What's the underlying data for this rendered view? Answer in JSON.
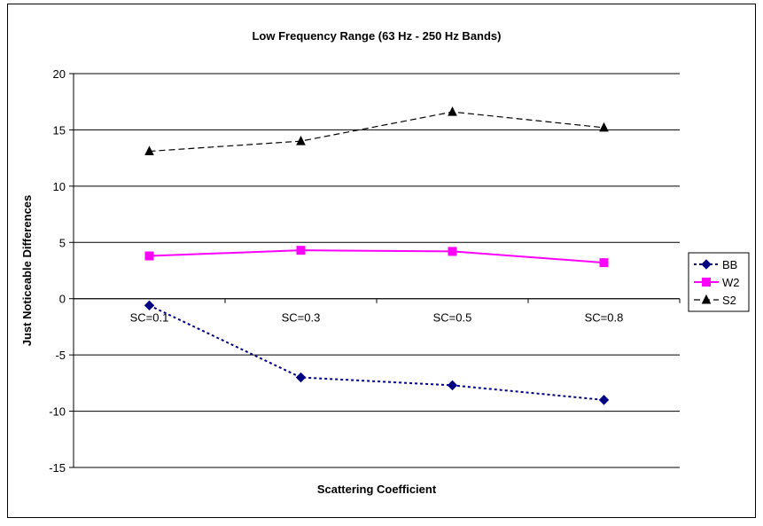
{
  "chart_data": {
    "type": "line",
    "title": "Low Frequency Range (63 Hz - 250 Hz Bands)",
    "xlabel": "Scattering Coefficient",
    "ylabel": "Just Noticeable Differences",
    "categories": [
      "SC=0.1",
      "SC=0.3",
      "SC=0.5",
      "SC=0.8"
    ],
    "ylim": [
      -15,
      20
    ],
    "yticks": [
      -15,
      -10,
      -5,
      0,
      5,
      10,
      15,
      20
    ],
    "grid": true,
    "legend_position": "right",
    "series": [
      {
        "name": "BB",
        "values": [
          -0.6,
          -7.0,
          -7.7,
          -9.0
        ],
        "color": "#000080",
        "dash": "dotted",
        "marker": "diamond"
      },
      {
        "name": "W2",
        "values": [
          3.8,
          4.3,
          4.2,
          3.2
        ],
        "color": "#ff00ff",
        "dash": "solid",
        "marker": "square"
      },
      {
        "name": "S2",
        "values": [
          13.1,
          14.0,
          16.6,
          15.2
        ],
        "color": "#000000",
        "dash": "dashed",
        "marker": "triangle"
      }
    ]
  }
}
